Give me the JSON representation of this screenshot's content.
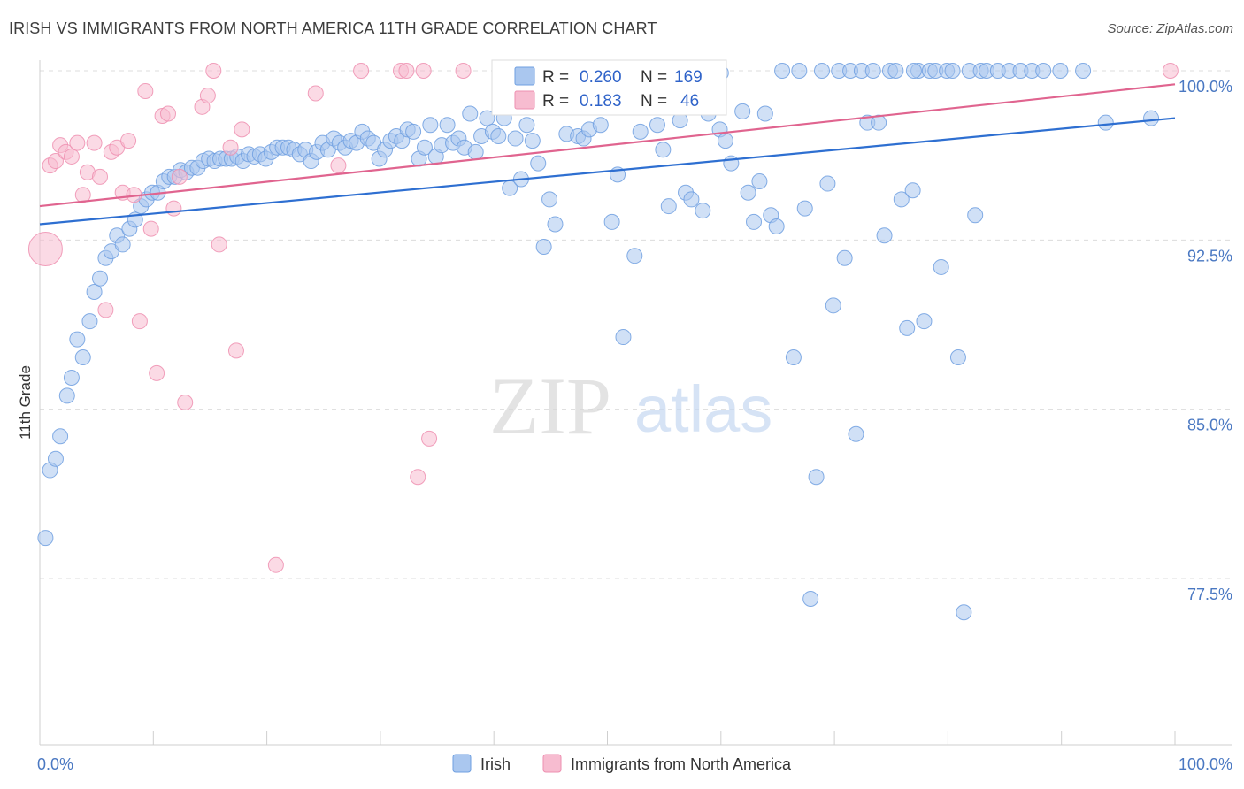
{
  "title": "IRISH VS IMMIGRANTS FROM NORTH AMERICA 11TH GRADE CORRELATION CHART",
  "source": "Source: ZipAtlas.com",
  "watermark": {
    "zip": "ZIP",
    "atlas": "atlas"
  },
  "colors": {
    "irish_fill": "#aac7ef",
    "irish_stroke": "#6f9fe0",
    "irish_line": "#2e6fd1",
    "immig_fill": "#f7bcd0",
    "immig_stroke": "#ee8fb0",
    "immig_line": "#e0648f",
    "grid": "#dcdcdc",
    "tick_text": "#4a78c2"
  },
  "legend": {
    "rows": [
      {
        "r_label": "R =",
        "r_value": "0.260",
        "n_label": "N =",
        "n_value": "169"
      },
      {
        "r_label": "R =",
        "r_value": "0.183",
        "n_label": "N =",
        "n_value": "46"
      }
    ]
  },
  "chart_data": {
    "type": "scatter",
    "xlabel": "",
    "ylabel": "11th Grade",
    "xlim": [
      0,
      100
    ],
    "ylim": [
      71.0,
      101.5
    ],
    "x_tick_labels": {
      "left": "0.0%",
      "right": "100.0%"
    },
    "y_ticks": [
      {
        "value": 100.0,
        "label": "100.0%"
      },
      {
        "value": 92.5,
        "label": "92.5%"
      },
      {
        "value": 85.0,
        "label": "85.0%"
      },
      {
        "value": 77.5,
        "label": "77.5%"
      }
    ],
    "grid": true,
    "legend_position": "bottom-center",
    "series": [
      {
        "name": "Irish",
        "trend": {
          "x": [
            0,
            100
          ],
          "y": [
            93.2,
            97.9
          ]
        },
        "points": [
          [
            0.5,
            79.3
          ],
          [
            0.9,
            82.3
          ],
          [
            1.4,
            82.8
          ],
          [
            1.8,
            83.8
          ],
          [
            2.4,
            85.6
          ],
          [
            2.8,
            86.4
          ],
          [
            3.3,
            88.1
          ],
          [
            3.8,
            87.3
          ],
          [
            4.4,
            88.9
          ],
          [
            4.8,
            90.2
          ],
          [
            5.3,
            90.8
          ],
          [
            5.8,
            91.7
          ],
          [
            6.3,
            92.0
          ],
          [
            6.8,
            92.7
          ],
          [
            7.3,
            92.3
          ],
          [
            7.9,
            93.0
          ],
          [
            8.4,
            93.4
          ],
          [
            8.9,
            94.0
          ],
          [
            9.4,
            94.3
          ],
          [
            9.9,
            94.6
          ],
          [
            10.4,
            94.6
          ],
          [
            10.9,
            95.1
          ],
          [
            11.4,
            95.3
          ],
          [
            11.9,
            95.3
          ],
          [
            12.4,
            95.6
          ],
          [
            12.9,
            95.5
          ],
          [
            13.4,
            95.7
          ],
          [
            13.9,
            95.7
          ],
          [
            14.4,
            96.0
          ],
          [
            14.9,
            96.1
          ],
          [
            15.4,
            96.0
          ],
          [
            15.9,
            96.1
          ],
          [
            16.4,
            96.1
          ],
          [
            16.9,
            96.1
          ],
          [
            17.4,
            96.2
          ],
          [
            17.9,
            96.0
          ],
          [
            18.4,
            96.3
          ],
          [
            18.9,
            96.2
          ],
          [
            19.4,
            96.3
          ],
          [
            19.9,
            96.1
          ],
          [
            20.4,
            96.4
          ],
          [
            20.9,
            96.6
          ],
          [
            21.4,
            96.6
          ],
          [
            21.9,
            96.6
          ],
          [
            22.4,
            96.5
          ],
          [
            22.9,
            96.3
          ],
          [
            23.4,
            96.5
          ],
          [
            23.9,
            96.0
          ],
          [
            24.4,
            96.4
          ],
          [
            24.9,
            96.8
          ],
          [
            25.4,
            96.5
          ],
          [
            25.9,
            97.0
          ],
          [
            26.4,
            96.8
          ],
          [
            26.9,
            96.6
          ],
          [
            27.4,
            96.9
          ],
          [
            27.9,
            96.8
          ],
          [
            28.4,
            97.3
          ],
          [
            28.9,
            97.0
          ],
          [
            29.4,
            96.8
          ],
          [
            29.9,
            96.1
          ],
          [
            30.4,
            96.5
          ],
          [
            30.9,
            96.9
          ],
          [
            31.4,
            97.1
          ],
          [
            31.9,
            96.9
          ],
          [
            32.4,
            97.4
          ],
          [
            32.9,
            97.3
          ],
          [
            33.4,
            96.1
          ],
          [
            33.9,
            96.6
          ],
          [
            34.4,
            97.6
          ],
          [
            34.9,
            96.2
          ],
          [
            35.4,
            96.7
          ],
          [
            35.9,
            97.6
          ],
          [
            36.4,
            96.8
          ],
          [
            36.9,
            97.0
          ],
          [
            37.4,
            96.6
          ],
          [
            37.9,
            98.1
          ],
          [
            38.4,
            96.4
          ],
          [
            38.9,
            97.1
          ],
          [
            39.4,
            97.9
          ],
          [
            39.9,
            97.3
          ],
          [
            40.4,
            97.1
          ],
          [
            40.9,
            97.9
          ],
          [
            41.4,
            94.8
          ],
          [
            41.9,
            97.0
          ],
          [
            42.4,
            95.2
          ],
          [
            42.9,
            97.6
          ],
          [
            43.4,
            96.9
          ],
          [
            43.9,
            95.9
          ],
          [
            44.4,
            92.2
          ],
          [
            44.9,
            94.3
          ],
          [
            45.4,
            93.2
          ],
          [
            46.4,
            97.2
          ],
          [
            46.9,
            99.1
          ],
          [
            47.4,
            97.1
          ],
          [
            47.9,
            97.0
          ],
          [
            48.4,
            97.4
          ],
          [
            48.9,
            100.0
          ],
          [
            49.4,
            97.6
          ],
          [
            50.4,
            93.3
          ],
          [
            50.9,
            95.4
          ],
          [
            51.4,
            88.2
          ],
          [
            52.4,
            91.8
          ],
          [
            52.9,
            97.3
          ],
          [
            53.4,
            99.0
          ],
          [
            53.9,
            98.4
          ],
          [
            54.4,
            97.6
          ],
          [
            54.9,
            96.5
          ],
          [
            55.4,
            94.0
          ],
          [
            55.9,
            98.9
          ],
          [
            56.4,
            97.8
          ],
          [
            56.9,
            94.6
          ],
          [
            57.4,
            94.3
          ],
          [
            58.4,
            93.8
          ],
          [
            58.9,
            98.1
          ],
          [
            59.4,
            99.6
          ],
          [
            59.9,
            97.4
          ],
          [
            60.4,
            96.9
          ],
          [
            60.9,
            95.9
          ],
          [
            61.9,
            98.2
          ],
          [
            62.4,
            94.6
          ],
          [
            62.9,
            93.3
          ],
          [
            63.4,
            95.1
          ],
          [
            63.9,
            98.1
          ],
          [
            64.4,
            93.6
          ],
          [
            64.9,
            93.1
          ],
          [
            65.4,
            100.0
          ],
          [
            66.4,
            87.3
          ],
          [
            66.9,
            100.0
          ],
          [
            67.4,
            93.9
          ],
          [
            67.9,
            76.6
          ],
          [
            68.4,
            82.0
          ],
          [
            68.9,
            100.0
          ],
          [
            69.4,
            95.0
          ],
          [
            69.9,
            89.6
          ],
          [
            70.4,
            100.0
          ],
          [
            70.9,
            91.7
          ],
          [
            71.4,
            100.0
          ],
          [
            71.9,
            83.9
          ],
          [
            72.4,
            100.0
          ],
          [
            72.9,
            97.7
          ],
          [
            73.4,
            100.0
          ],
          [
            73.9,
            97.7
          ],
          [
            74.4,
            92.7
          ],
          [
            74.9,
            100.0
          ],
          [
            75.4,
            100.0
          ],
          [
            75.9,
            94.3
          ],
          [
            76.4,
            88.6
          ],
          [
            76.9,
            94.7
          ],
          [
            77.4,
            100.0
          ],
          [
            77.9,
            88.9
          ],
          [
            78.4,
            100.0
          ],
          [
            78.9,
            100.0
          ],
          [
            79.4,
            91.3
          ],
          [
            79.9,
            100.0
          ],
          [
            80.4,
            100.0
          ],
          [
            80.9,
            87.3
          ],
          [
            81.4,
            76.0
          ],
          [
            81.9,
            100.0
          ],
          [
            82.4,
            93.6
          ],
          [
            82.9,
            100.0
          ],
          [
            83.4,
            100.0
          ],
          [
            84.4,
            100.0
          ],
          [
            85.4,
            100.0
          ],
          [
            86.4,
            100.0
          ],
          [
            87.4,
            100.0
          ],
          [
            88.4,
            100.0
          ],
          [
            89.9,
            100.0
          ],
          [
            91.9,
            100.0
          ],
          [
            93.9,
            97.7
          ],
          [
            97.9,
            97.9
          ],
          [
            52.0,
            100.0
          ],
          [
            44.0,
            100.0
          ],
          [
            60.0,
            99.9
          ],
          [
            77.0,
            100.0
          ]
        ]
      },
      {
        "name": "Immigrants from North America",
        "trend": {
          "x": [
            0,
            100
          ],
          "y": [
            94.0,
            99.4
          ]
        },
        "points": [
          [
            0.5,
            92.1
          ],
          [
            0.9,
            95.8
          ],
          [
            1.4,
            96.0
          ],
          [
            1.8,
            96.7
          ],
          [
            2.3,
            96.4
          ],
          [
            2.8,
            96.2
          ],
          [
            3.3,
            96.8
          ],
          [
            3.8,
            94.5
          ],
          [
            4.2,
            95.5
          ],
          [
            4.8,
            96.8
          ],
          [
            5.3,
            95.3
          ],
          [
            5.8,
            89.4
          ],
          [
            6.3,
            96.4
          ],
          [
            6.8,
            96.6
          ],
          [
            7.3,
            94.6
          ],
          [
            7.8,
            96.9
          ],
          [
            8.3,
            94.5
          ],
          [
            8.8,
            88.9
          ],
          [
            9.3,
            99.1
          ],
          [
            9.8,
            93.0
          ],
          [
            10.3,
            86.6
          ],
          [
            10.8,
            98.0
          ],
          [
            11.3,
            98.1
          ],
          [
            11.8,
            93.9
          ],
          [
            12.3,
            95.3
          ],
          [
            12.8,
            85.3
          ],
          [
            14.3,
            98.4
          ],
          [
            14.8,
            98.9
          ],
          [
            15.3,
            100.0
          ],
          [
            15.8,
            92.3
          ],
          [
            16.8,
            96.6
          ],
          [
            17.3,
            87.6
          ],
          [
            17.8,
            97.4
          ],
          [
            20.8,
            78.1
          ],
          [
            24.3,
            99.0
          ],
          [
            26.3,
            95.8
          ],
          [
            28.3,
            100.0
          ],
          [
            31.8,
            100.0
          ],
          [
            32.3,
            100.0
          ],
          [
            33.3,
            82.0
          ],
          [
            33.8,
            100.0
          ],
          [
            34.3,
            83.7
          ],
          [
            37.3,
            100.0
          ],
          [
            49.0,
            99.0
          ],
          [
            55.0,
            98.6
          ],
          [
            99.6,
            100.0
          ]
        ]
      }
    ]
  },
  "bottom_legend": {
    "irish": "Irish",
    "immig": "Immigrants from North America"
  }
}
